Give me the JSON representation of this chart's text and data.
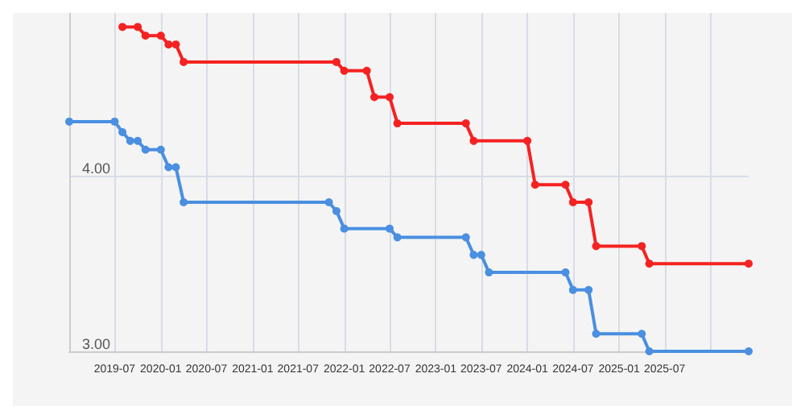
{
  "chart_data": {
    "type": "line",
    "series": [
      {
        "color": "#f52222",
        "x": [
          "2019-08",
          "2019-10",
          "2019-11",
          "2020-01",
          "2020-02",
          "2020-03",
          "2020-04",
          "2021-12",
          "2022-01",
          "2022-04",
          "2022-05",
          "2022-07",
          "2022-08",
          "2023-05",
          "2023-06",
          "2024-01",
          "2024-02",
          "2024-06",
          "2024-07",
          "2024-09",
          "2024-10",
          "2025-04",
          "2025-05",
          "2026-06"
        ],
        "values": [
          4.85,
          4.85,
          4.8,
          4.8,
          4.75,
          4.75,
          4.65,
          4.65,
          4.6,
          4.6,
          4.45,
          4.45,
          4.3,
          4.3,
          4.2,
          4.2,
          3.95,
          3.95,
          3.85,
          3.85,
          3.6,
          3.6,
          3.5,
          3.5
        ]
      },
      {
        "color": "#4a8fe0",
        "x": [
          "2019-01",
          "2019-07",
          "2019-08",
          "2019-09",
          "2019-10",
          "2019-11",
          "2020-01",
          "2020-02",
          "2020-03",
          "2020-04",
          "2021-11",
          "2021-12",
          "2022-01",
          "2022-07",
          "2022-08",
          "2023-05",
          "2023-06",
          "2023-07",
          "2023-08",
          "2024-06",
          "2024-07",
          "2024-09",
          "2024-10",
          "2025-04",
          "2025-05",
          "2026-06"
        ],
        "values": [
          4.31,
          4.31,
          4.25,
          4.2,
          4.2,
          4.15,
          4.15,
          4.05,
          4.05,
          3.85,
          3.85,
          3.8,
          3.7,
          3.7,
          3.65,
          3.65,
          3.55,
          3.55,
          3.45,
          3.45,
          3.35,
          3.35,
          3.1,
          3.1,
          3.0,
          3.0
        ]
      }
    ],
    "xlim": [
      "2019-01",
      "2026-06"
    ],
    "xticks": [
      {
        "value": "2019-07",
        "label": "2019-07"
      },
      {
        "value": "2020-01",
        "label": "2020-01"
      },
      {
        "value": "2020-07",
        "label": "2020-07"
      },
      {
        "value": "2021-01",
        "label": "2021-01"
      },
      {
        "value": "2021-07",
        "label": "2021-07"
      },
      {
        "value": "2022-01",
        "label": "2022-01"
      },
      {
        "value": "2022-07",
        "label": "2022-07"
      },
      {
        "value": "2023-01",
        "label": "2023-01"
      },
      {
        "value": "2023-07",
        "label": "2023-07"
      },
      {
        "value": "2024-01",
        "label": "2024-01"
      },
      {
        "value": "2024-07",
        "label": "2024-07"
      },
      {
        "value": "2025-01",
        "label": "2025-01"
      },
      {
        "value": "2025-07",
        "label": "2025-07"
      },
      {
        "value": "2026-01",
        "label": null
      }
    ],
    "ylim": [
      3,
      4.93
    ],
    "yticks": [
      {
        "value": 3,
        "label": "3.00"
      },
      {
        "value": 4,
        "label": "4.00"
      }
    ],
    "grid": true,
    "marker": "circle",
    "line_style": "solid"
  }
}
